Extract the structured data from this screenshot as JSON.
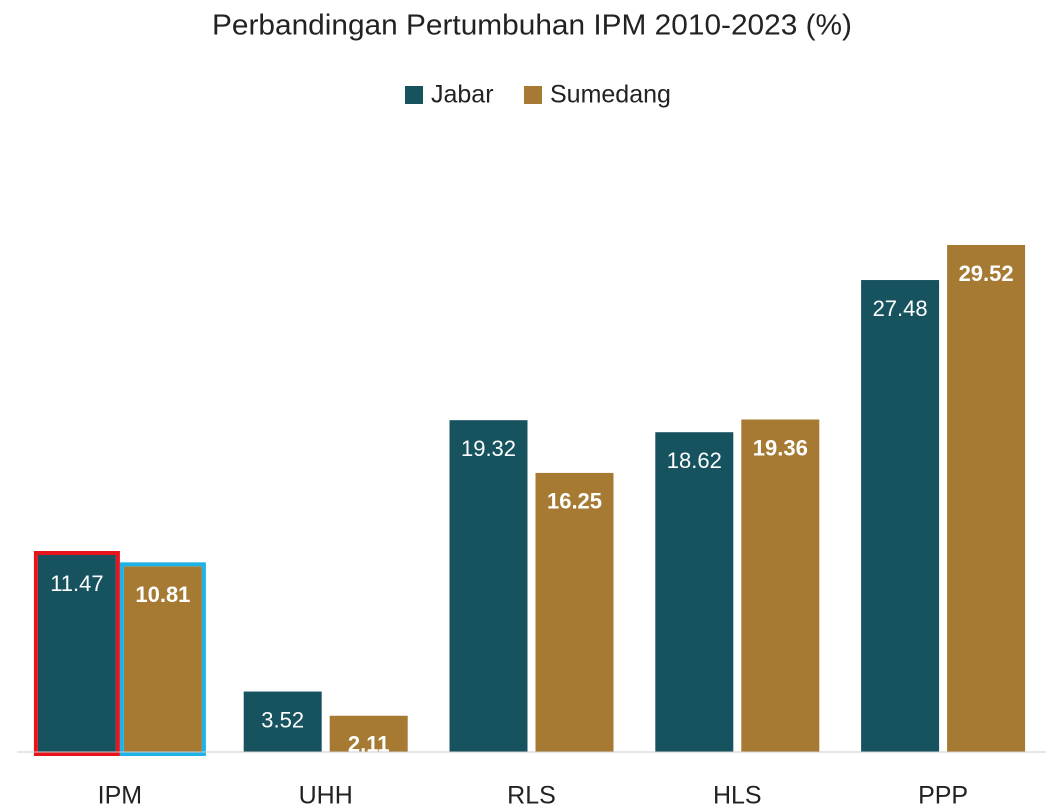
{
  "chart_data": {
    "type": "bar",
    "title": "Perbandingan Pertumbuhan IPM 2010-2023 (%)",
    "categories": [
      "IPM",
      "UHH",
      "RLS",
      "HLS",
      "PPP"
    ],
    "series": [
      {
        "name": "Jabar",
        "color": "#17535f",
        "values": [
          11.47,
          3.52,
          19.32,
          18.62,
          27.48
        ]
      },
      {
        "name": "Sumedang",
        "color": "#a67a33",
        "values": [
          10.81,
          2.11,
          16.25,
          19.36,
          29.52
        ]
      }
    ],
    "legend": "top"
  }
}
